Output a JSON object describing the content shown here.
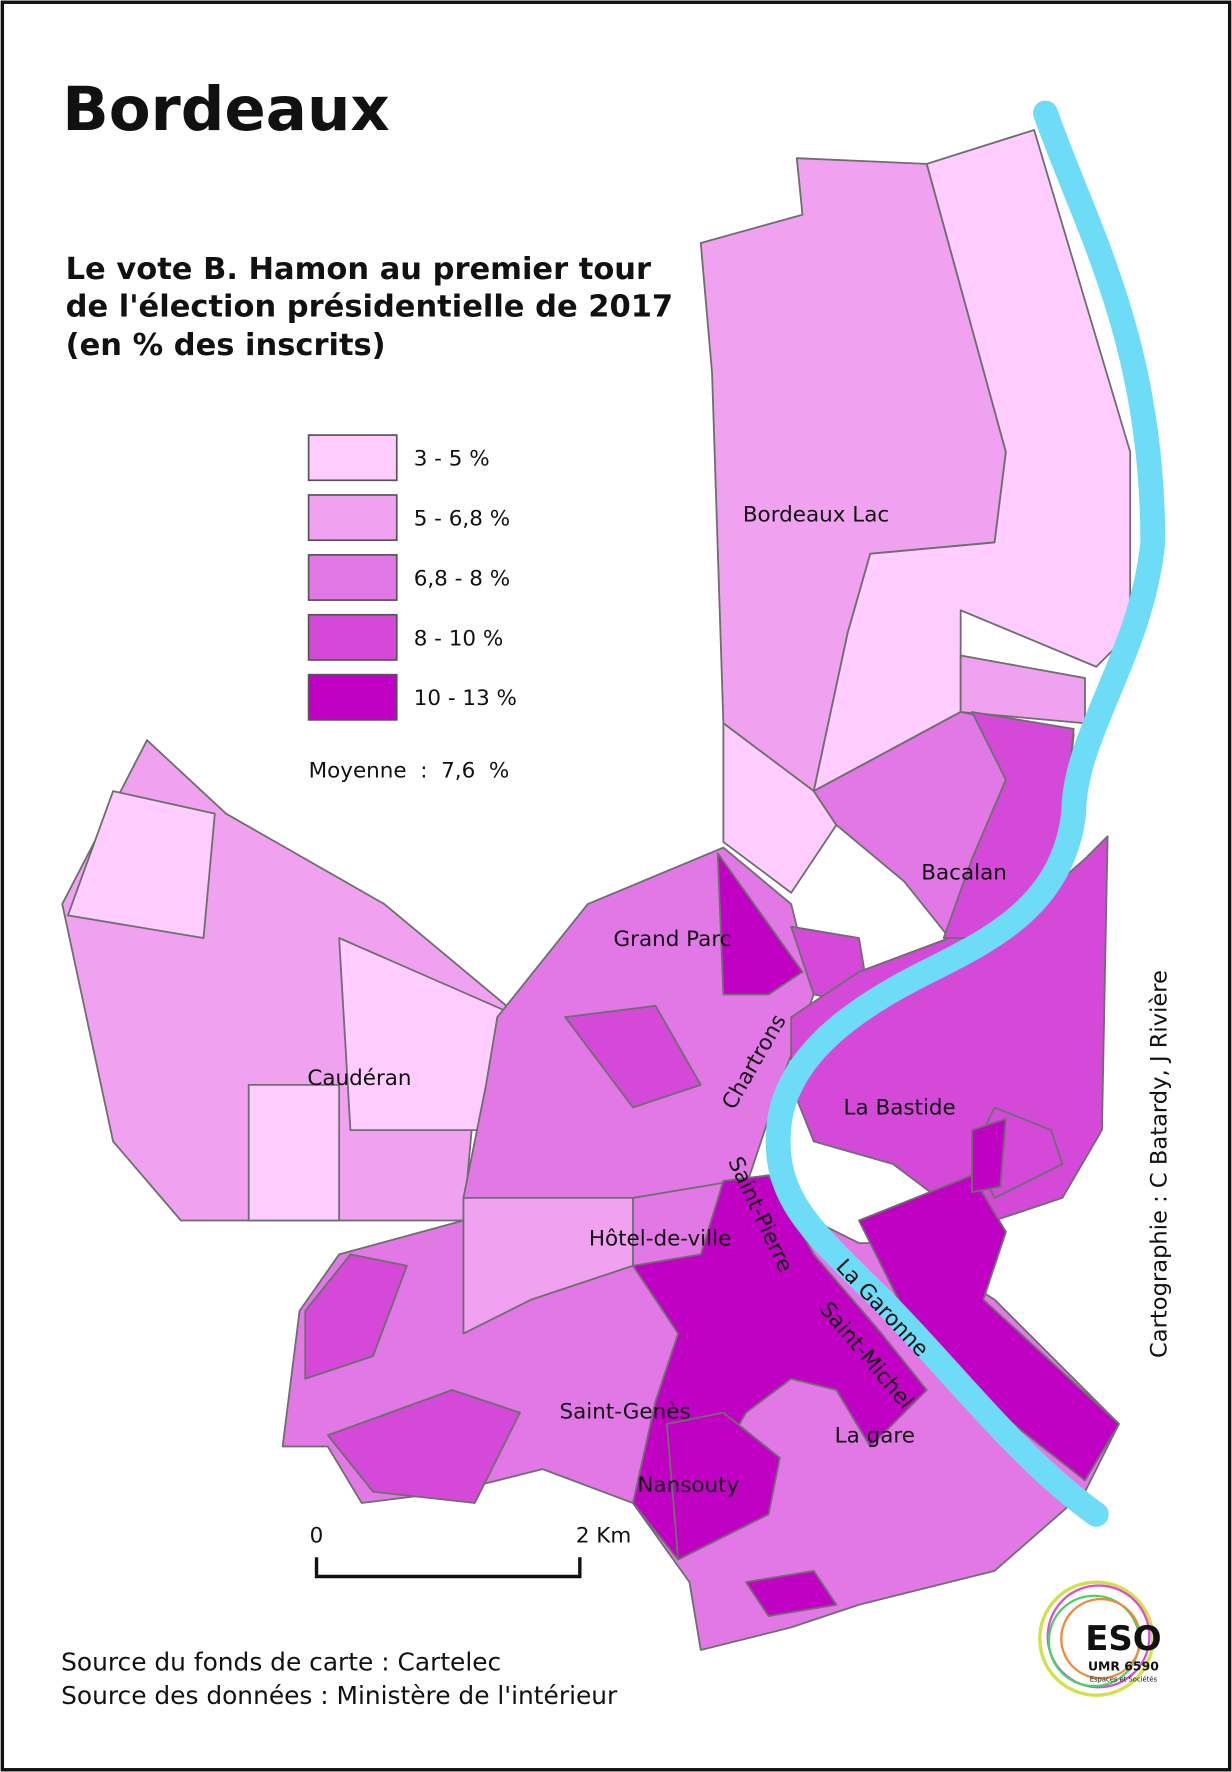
{
  "title": "Bordeaux",
  "subtitle": [
    "Le vote B. Hamon au premier tour",
    "de l'élection présidentielle de 2017",
    "(en % des inscrits)"
  ],
  "legend": {
    "classes": [
      {
        "label": "3 - 5 %",
        "color": "#ffccff"
      },
      {
        "label": "5 - 6,8 %",
        "color": "#f0a2f0"
      },
      {
        "label": "6,8 - 8 %",
        "color": "#e278e6"
      },
      {
        "label": "8 - 10 %",
        "color": "#d449d8"
      },
      {
        "label": "10 - 13 %",
        "color": "#c000c3"
      }
    ],
    "average": "Moyenne  :  7,6  %"
  },
  "places": [
    "Bordeaux Lac",
    "Bacalan",
    "Grand Parc",
    "Caudéran",
    "Chartrons",
    "La Bastide",
    "Saint-Pierre",
    "Hôtel-de-ville",
    "La Garonne",
    "Saint-Michel",
    "Saint-Genès",
    "La gare",
    "Nansouty"
  ],
  "scale": {
    "start": "0",
    "end": "2 Km"
  },
  "sources": [
    "Source du fonds de carte : Cartelec",
    "Source des données : Ministère de l'intérieur"
  ],
  "credit": "Cartographie : C Batardy, J Rivière",
  "logo": {
    "name": "ESO",
    "unit": "UMR 6590",
    "tagline": "Espaces et Sociétés"
  }
}
